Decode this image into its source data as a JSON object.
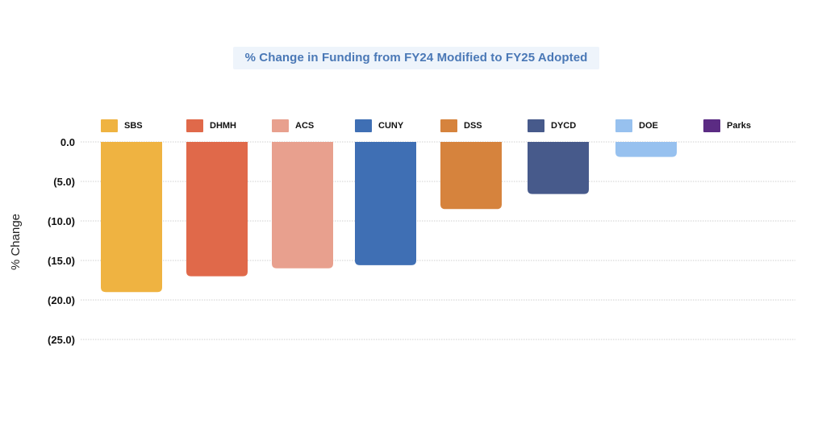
{
  "chart_data": {
    "type": "bar",
    "title": "% Change in Funding from FY24 Modified to FY25 Adopted",
    "xlabel": "",
    "ylabel": "% Change",
    "categories": [
      "SBS",
      "DHMH",
      "ACS",
      "CUNY",
      "DSS",
      "DYCD",
      "DOE",
      "Parks"
    ],
    "values": [
      -19.0,
      -17.0,
      -16.0,
      -15.6,
      -8.5,
      -6.6,
      -1.9,
      0.0
    ],
    "colors": [
      "#efb341",
      "#e0694a",
      "#e8a08e",
      "#3f6fb4",
      "#d6833d",
      "#475a8b",
      "#97c1ef",
      "#5b2b83"
    ],
    "ylim": [
      -25,
      0
    ],
    "yticks": [
      0,
      -5,
      -10,
      -15,
      -20,
      -25
    ],
    "ytick_labels": [
      "0.0",
      "(5.0)",
      "(10.0)",
      "(15.0)",
      "(20.0)",
      "(25.0)"
    ],
    "grid": true,
    "legend": {
      "placement": "top",
      "entries": [
        "SBS",
        "DHMH",
        "ACS",
        "CUNY",
        "DSS",
        "DYCD",
        "DOE",
        "Parks"
      ]
    }
  }
}
